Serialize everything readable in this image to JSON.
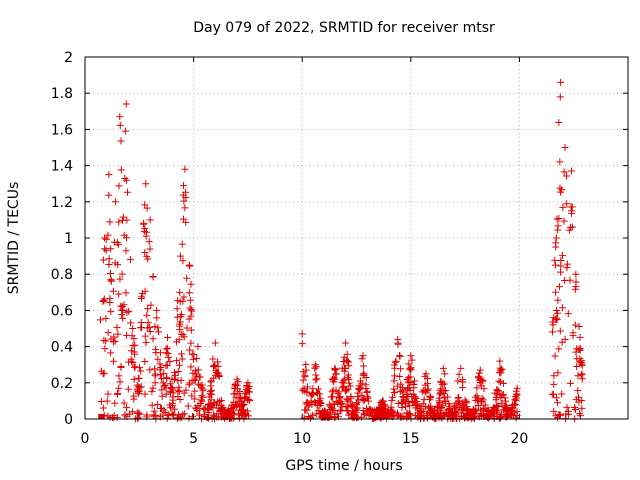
{
  "chart_data": {
    "type": "scatter",
    "title": "Day 079 of 2022, SRMTID for receiver mtsr",
    "xlabel": "GPS time / hours",
    "ylabel": "SRMTID / TECUs",
    "xlim": [
      0,
      25
    ],
    "ylim": [
      0,
      2
    ],
    "x_ticks": [
      "0",
      "5",
      "10",
      "15",
      "20"
    ],
    "y_ticks": [
      "0",
      "0.2",
      "0.4",
      "0.6",
      "0.8",
      "1",
      "1.2",
      "1.4",
      "1.6",
      "1.8",
      "2"
    ],
    "grid": true,
    "marker": "+",
    "marker_color": "#e00000",
    "series": [
      {
        "name": "SRMTID",
        "segments": [
          {
            "x_range": [
              0.7,
              7.6
            ],
            "peaks": [
              [
                0.9,
                1.0
              ],
              [
                1.1,
                1.35
              ],
              [
                1.4,
                1.2
              ],
              [
                1.6,
                1.67
              ],
              [
                1.9,
                1.74
              ],
              [
                2.2,
                0.5
              ],
              [
                2.8,
                1.3
              ],
              [
                3.0,
                1.1
              ],
              [
                3.3,
                0.6
              ],
              [
                3.8,
                0.45
              ],
              [
                4.4,
                0.9
              ],
              [
                4.6,
                1.38
              ],
              [
                4.8,
                0.85
              ],
              [
                5.2,
                0.4
              ],
              [
                6.0,
                0.42
              ],
              [
                7.0,
                0.22
              ],
              [
                7.5,
                0.2
              ]
            ]
          },
          {
            "x_range": [
              10.0,
              19.9
            ],
            "peaks": [
              [
                10.0,
                0.47
              ],
              [
                10.6,
                0.3
              ],
              [
                11.5,
                0.28
              ],
              [
                12.0,
                0.42
              ],
              [
                12.8,
                0.35
              ],
              [
                13.7,
                0.1
              ],
              [
                14.4,
                0.44
              ],
              [
                15.0,
                0.35
              ],
              [
                15.7,
                0.25
              ],
              [
                16.5,
                0.28
              ],
              [
                17.3,
                0.28
              ],
              [
                18.2,
                0.27
              ],
              [
                19.1,
                0.32
              ],
              [
                19.9,
                0.17
              ]
            ]
          },
          {
            "x_range": [
              21.5,
              22.9
            ],
            "peaks": [
              [
                21.7,
                1.0
              ],
              [
                21.9,
                1.86
              ],
              [
                22.1,
                1.5
              ],
              [
                22.4,
                1.37
              ],
              [
                22.6,
                0.8
              ],
              [
                22.8,
                0.38
              ]
            ]
          }
        ]
      }
    ]
  }
}
